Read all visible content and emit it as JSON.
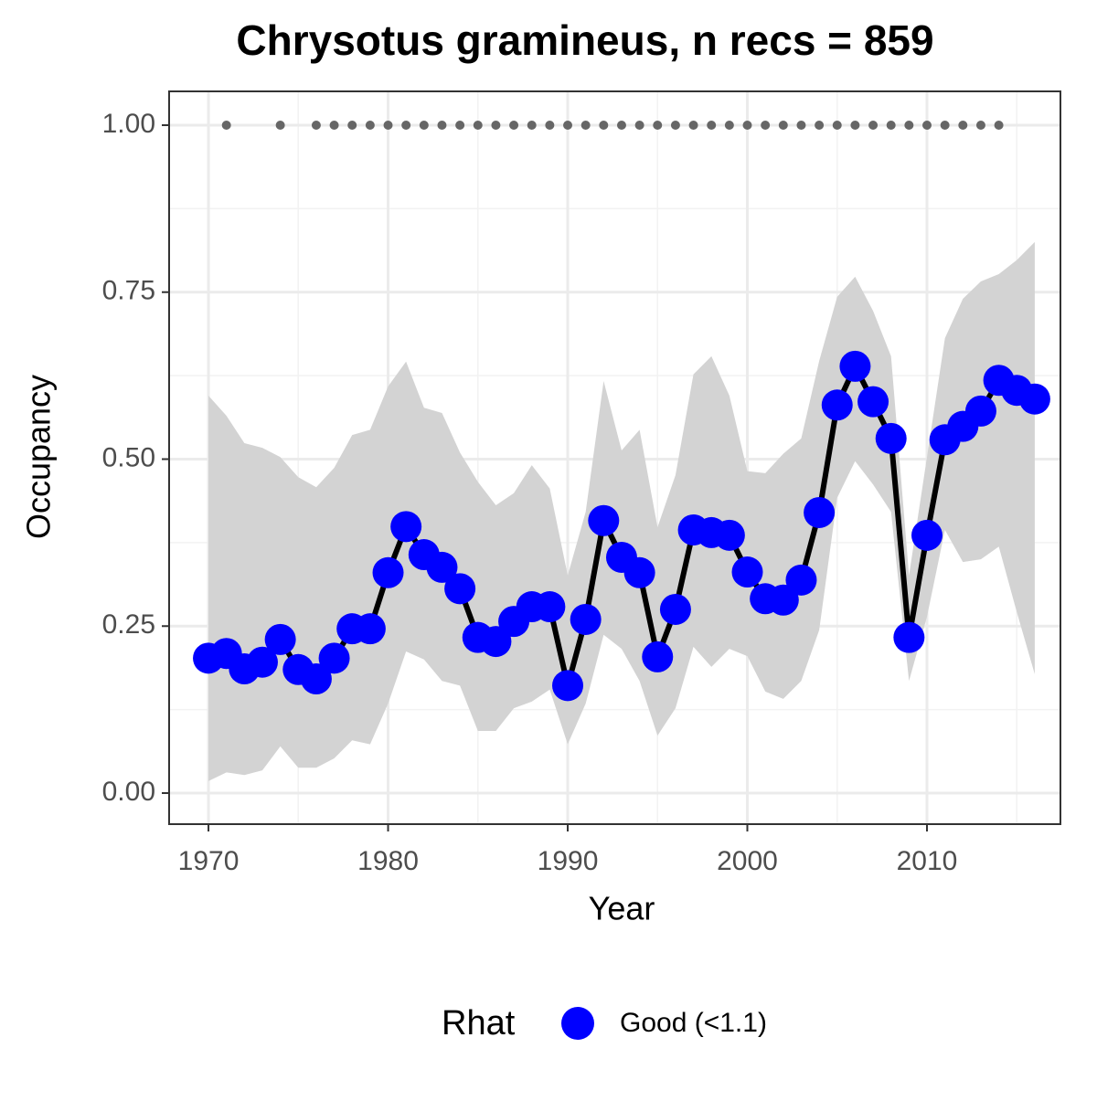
{
  "chart_data": {
    "type": "line",
    "title": "Chrysotus gramineus, n recs = 859",
    "x_label": "Year",
    "y_label": "Occupancy",
    "x": [
      1970,
      1971,
      1972,
      1973,
      1974,
      1975,
      1976,
      1977,
      1978,
      1979,
      1980,
      1981,
      1982,
      1983,
      1984,
      1985,
      1986,
      1987,
      1988,
      1989,
      1990,
      1991,
      1992,
      1993,
      1994,
      1995,
      1996,
      1997,
      1998,
      1999,
      2000,
      2001,
      2002,
      2003,
      2004,
      2005,
      2006,
      2007,
      2008,
      2009,
      2010,
      2011,
      2012,
      2013,
      2014,
      2015,
      2016
    ],
    "series": [
      {
        "name": "Good (<1.1)",
        "color": "#0000ff",
        "values": [
          0.202,
          0.209,
          0.186,
          0.196,
          0.23,
          0.185,
          0.171,
          0.202,
          0.246,
          0.246,
          0.33,
          0.399,
          0.357,
          0.338,
          0.306,
          0.233,
          0.227,
          0.257,
          0.279,
          0.279,
          0.161,
          0.26,
          0.408,
          0.353,
          0.33,
          0.204,
          0.275,
          0.394,
          0.39,
          0.386,
          0.331,
          0.291,
          0.289,
          0.319,
          0.42,
          0.581,
          0.639,
          0.586,
          0.531,
          0.233,
          0.386,
          0.529,
          0.549,
          0.572,
          0.618,
          0.603,
          0.59
        ]
      }
    ],
    "line_color": "#000000",
    "ribbon": {
      "color": "#d3d3d3",
      "upper": [
        0.595,
        0.565,
        0.524,
        0.517,
        0.503,
        0.473,
        0.458,
        0.487,
        0.536,
        0.544,
        0.609,
        0.646,
        0.577,
        0.569,
        0.51,
        0.466,
        0.431,
        0.449,
        0.491,
        0.456,
        0.326,
        0.421,
        0.617,
        0.513,
        0.544,
        0.398,
        0.476,
        0.627,
        0.654,
        0.595,
        0.482,
        0.479,
        0.508,
        0.531,
        0.647,
        0.743,
        0.773,
        0.722,
        0.654,
        0.326,
        0.503,
        0.681,
        0.74,
        0.766,
        0.777,
        0.798,
        0.825
      ],
      "lower": [
        0.018,
        0.031,
        0.027,
        0.034,
        0.07,
        0.038,
        0.038,
        0.052,
        0.079,
        0.073,
        0.134,
        0.212,
        0.2,
        0.168,
        0.161,
        0.093,
        0.093,
        0.127,
        0.137,
        0.155,
        0.073,
        0.134,
        0.237,
        0.216,
        0.168,
        0.086,
        0.127,
        0.219,
        0.189,
        0.216,
        0.205,
        0.152,
        0.141,
        0.168,
        0.244,
        0.442,
        0.497,
        0.462,
        0.421,
        0.168,
        0.264,
        0.394,
        0.346,
        0.35,
        0.369,
        0.271,
        0.178
      ]
    },
    "records": {
      "color": "#666666",
      "x": [
        1971,
        1974,
        1976,
        1977,
        1978,
        1979,
        1980,
        1981,
        1982,
        1983,
        1984,
        1985,
        1986,
        1987,
        1988,
        1989,
        1990,
        1991,
        1992,
        1993,
        1994,
        1995,
        1996,
        1997,
        1998,
        1999,
        2000,
        2001,
        2002,
        2003,
        2004,
        2005,
        2006,
        2007,
        2008,
        2009,
        2010,
        2011,
        2012,
        2013,
        2014
      ],
      "values": [
        1,
        1,
        1,
        1,
        1,
        1,
        1,
        1,
        1,
        1,
        1,
        1,
        1,
        1,
        1,
        1,
        1,
        1,
        1,
        1,
        1,
        1,
        1,
        1,
        1,
        1,
        1,
        1,
        1,
        1,
        1,
        1,
        1,
        1,
        1,
        1,
        1,
        1,
        1,
        1,
        1
      ]
    },
    "xlim": [
      1967.81,
      2017.43
    ],
    "ylim": [
      -0.0465,
      1.0506
    ],
    "xticks": [
      1970,
      1980,
      1990,
      2000,
      2010
    ],
    "yticks": [
      {
        "value": 0,
        "label": "0.00"
      },
      {
        "value": 0.25,
        "label": "0.25"
      },
      {
        "value": 0.5,
        "label": "0.50"
      },
      {
        "value": 0.75,
        "label": "0.75"
      },
      {
        "value": 1,
        "label": "1.00"
      }
    ],
    "minor_xticks": [
      1975,
      1985,
      1995,
      2005,
      2015
    ],
    "minor_yticks": [
      0.125,
      0.375,
      0.625,
      0.875
    ],
    "grid": true,
    "legend_title": "Rhat",
    "legend_position": "bottom"
  }
}
